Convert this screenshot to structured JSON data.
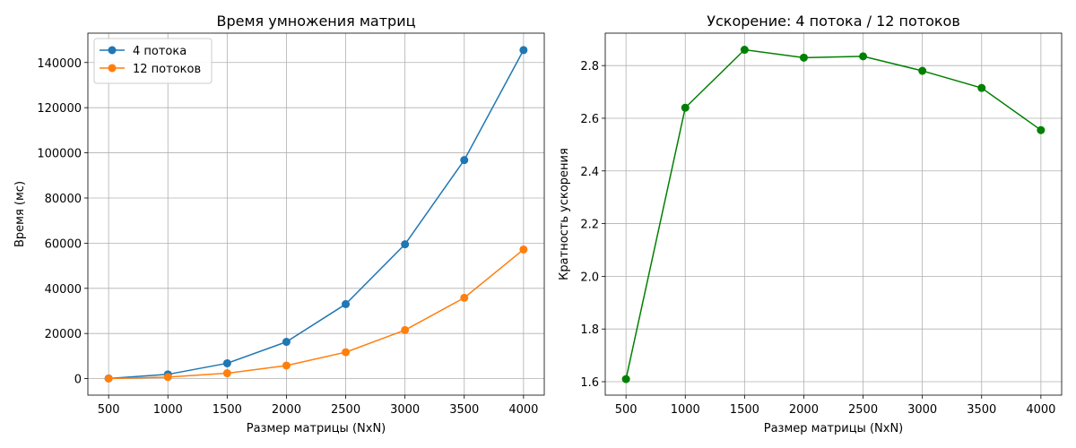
{
  "chart_data": [
    {
      "type": "line",
      "title": "Время умножения матриц",
      "xlabel": "Размер матрицы (NxN)",
      "ylabel": "Время (мс)",
      "x": [
        500,
        1000,
        1500,
        2000,
        2500,
        3000,
        3500,
        4000
      ],
      "xticks": [
        500,
        1000,
        1500,
        2000,
        2500,
        3000,
        3500,
        4000
      ],
      "yticks": [
        0,
        20000,
        40000,
        60000,
        80000,
        100000,
        120000,
        140000
      ],
      "xlim": [
        325,
        4175
      ],
      "ylim": [
        -7300,
        153000
      ],
      "grid": true,
      "legend": "upper-left",
      "series": [
        {
          "name": "4 потока",
          "color": "#1f77b4",
          "values": [
            100,
            1900,
            6800,
            16300,
            33000,
            59500,
            96800,
            145500
          ]
        },
        {
          "name": "12 потоков",
          "color": "#ff7f0e",
          "values": [
            50,
            700,
            2400,
            5800,
            11700,
            21500,
            35800,
            57200
          ]
        }
      ]
    },
    {
      "type": "line",
      "title": "Ускорение: 4 потока / 12 потоков",
      "xlabel": "Размер матрицы (NxN)",
      "ylabel": "Кратность ускорения",
      "x": [
        500,
        1000,
        1500,
        2000,
        2500,
        3000,
        3500,
        4000
      ],
      "xticks": [
        500,
        1000,
        1500,
        2000,
        2500,
        3000,
        3500,
        4000
      ],
      "yticks": [
        1.6,
        1.8,
        2.0,
        2.2,
        2.4,
        2.6,
        2.8
      ],
      "xlim": [
        325,
        4175
      ],
      "ylim": [
        1.549,
        2.923
      ],
      "grid": true,
      "series": [
        {
          "color": "#008000",
          "values": [
            1.61,
            2.64,
            2.86,
            2.83,
            2.835,
            2.78,
            2.715,
            2.555
          ]
        }
      ]
    }
  ]
}
